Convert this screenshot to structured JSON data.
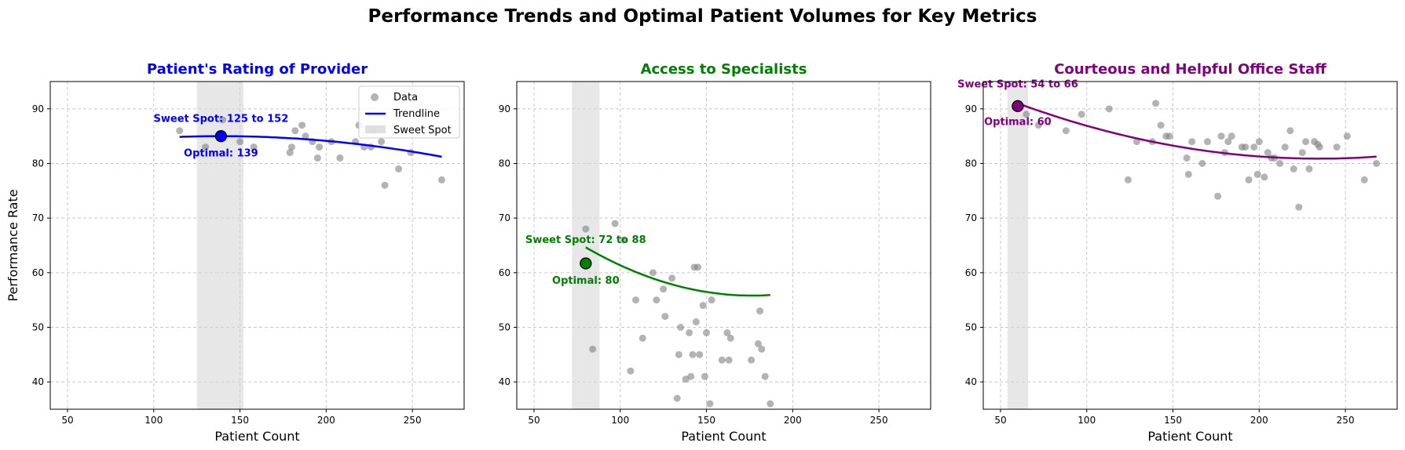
{
  "figure": {
    "title": "Performance Trends and Optimal Patient Volumes for Key Metrics"
  },
  "chart_data": [
    {
      "type": "scatter",
      "title": "Patient's Rating of Provider",
      "title_color": "#0000ff",
      "accent_color": "#0000ff",
      "xlabel": "Patient Count",
      "ylabel": "Performance Rate",
      "xlim": [
        40,
        280
      ],
      "ylim": [
        35,
        95
      ],
      "xticks": [
        50,
        100,
        150,
        200,
        250
      ],
      "yticks": [
        40,
        50,
        60,
        70,
        80,
        90
      ],
      "grid": true,
      "legend": {
        "position": "top-right",
        "entries": [
          "Data",
          "Trendline",
          "Sweet Spot"
        ]
      },
      "points": [
        {
          "x": 115,
          "y": 86
        },
        {
          "x": 130,
          "y": 83
        },
        {
          "x": 140,
          "y": 88
        },
        {
          "x": 150,
          "y": 84
        },
        {
          "x": 158,
          "y": 83
        },
        {
          "x": 179,
          "y": 82
        },
        {
          "x": 180,
          "y": 83
        },
        {
          "x": 182,
          "y": 86
        },
        {
          "x": 186,
          "y": 87
        },
        {
          "x": 188,
          "y": 85
        },
        {
          "x": 192,
          "y": 84
        },
        {
          "x": 195,
          "y": 81
        },
        {
          "x": 196,
          "y": 83
        },
        {
          "x": 203,
          "y": 84
        },
        {
          "x": 208,
          "y": 81
        },
        {
          "x": 217,
          "y": 84
        },
        {
          "x": 219,
          "y": 87
        },
        {
          "x": 222,
          "y": 83
        },
        {
          "x": 226,
          "y": 83
        },
        {
          "x": 227,
          "y": 86
        },
        {
          "x": 232,
          "y": 84
        },
        {
          "x": 234,
          "y": 76
        },
        {
          "x": 242,
          "y": 79
        },
        {
          "x": 249,
          "y": 82
        },
        {
          "x": 267,
          "y": 77
        }
      ],
      "trend": {
        "x_range": [
          115,
          267
        ],
        "quadratic": [
          -0.00023,
          0.0639,
          80.56
        ]
      },
      "sweet_spot": {
        "range": [
          125,
          152
        ],
        "label": "Sweet Spot: 125 to 152"
      },
      "optimal": {
        "x": 139,
        "y": 85,
        "label": "Optimal: 139"
      }
    },
    {
      "type": "scatter",
      "title": "Access to Specialists",
      "title_color": "#008000",
      "accent_color": "#008000",
      "xlabel": "Patient Count",
      "ylabel": "",
      "xlim": [
        40,
        280
      ],
      "ylim": [
        35,
        95
      ],
      "xticks": [
        50,
        100,
        150,
        200,
        250
      ],
      "yticks": [
        40,
        50,
        60,
        70,
        80,
        90
      ],
      "grid": true,
      "points": [
        {
          "x": 80,
          "y": 68
        },
        {
          "x": 84,
          "y": 46
        },
        {
          "x": 97,
          "y": 69
        },
        {
          "x": 102,
          "y": 66
        },
        {
          "x": 106,
          "y": 42
        },
        {
          "x": 109,
          "y": 55
        },
        {
          "x": 113,
          "y": 48
        },
        {
          "x": 119,
          "y": 60
        },
        {
          "x": 121,
          "y": 55
        },
        {
          "x": 125,
          "y": 57
        },
        {
          "x": 126,
          "y": 52
        },
        {
          "x": 130,
          "y": 59
        },
        {
          "x": 133,
          "y": 37
        },
        {
          "x": 134,
          "y": 45
        },
        {
          "x": 135,
          "y": 50
        },
        {
          "x": 138,
          "y": 40.5
        },
        {
          "x": 140,
          "y": 49
        },
        {
          "x": 141,
          "y": 41
        },
        {
          "x": 142,
          "y": 45
        },
        {
          "x": 143,
          "y": 61
        },
        {
          "x": 144,
          "y": 51
        },
        {
          "x": 145,
          "y": 61
        },
        {
          "x": 146,
          "y": 45
        },
        {
          "x": 148,
          "y": 54
        },
        {
          "x": 149,
          "y": 41
        },
        {
          "x": 150,
          "y": 49
        },
        {
          "x": 152,
          "y": 36
        },
        {
          "x": 153,
          "y": 55
        },
        {
          "x": 159,
          "y": 44
        },
        {
          "x": 162,
          "y": 49
        },
        {
          "x": 163,
          "y": 44
        },
        {
          "x": 164,
          "y": 48
        },
        {
          "x": 176,
          "y": 44
        },
        {
          "x": 180,
          "y": 47
        },
        {
          "x": 181,
          "y": 53
        },
        {
          "x": 182,
          "y": 46
        },
        {
          "x": 184,
          "y": 41
        },
        {
          "x": 187,
          "y": 36
        }
      ],
      "trend": {
        "x_range": [
          80,
          187
        ],
        "quadratic": [
          0.000948,
          -0.3347,
          85.35
        ]
      },
      "sweet_spot": {
        "range": [
          72,
          88
        ],
        "label": "Sweet Spot: 72 to 88"
      },
      "optimal": {
        "x": 80,
        "y": 61.7,
        "label": "Optimal: 80"
      }
    },
    {
      "type": "scatter",
      "title": "Courteous and Helpful Office Staff",
      "title_color": "#800080",
      "accent_color": "#800080",
      "xlabel": "Patient Count",
      "ylabel": "",
      "xlim": [
        40,
        280
      ],
      "ylim": [
        35,
        95
      ],
      "xticks": [
        50,
        100,
        150,
        200,
        250
      ],
      "yticks": [
        40,
        50,
        60,
        70,
        80,
        90
      ],
      "grid": true,
      "points": [
        {
          "x": 60,
          "y": 91
        },
        {
          "x": 65,
          "y": 89
        },
        {
          "x": 72,
          "y": 87
        },
        {
          "x": 88,
          "y": 86
        },
        {
          "x": 97,
          "y": 89
        },
        {
          "x": 113,
          "y": 90
        },
        {
          "x": 124,
          "y": 77
        },
        {
          "x": 129,
          "y": 84
        },
        {
          "x": 138,
          "y": 84
        },
        {
          "x": 140,
          "y": 91
        },
        {
          "x": 143,
          "y": 87
        },
        {
          "x": 146,
          "y": 85
        },
        {
          "x": 148,
          "y": 85
        },
        {
          "x": 158,
          "y": 81
        },
        {
          "x": 159,
          "y": 78
        },
        {
          "x": 161,
          "y": 84
        },
        {
          "x": 167,
          "y": 80
        },
        {
          "x": 170,
          "y": 84
        },
        {
          "x": 176,
          "y": 74
        },
        {
          "x": 178,
          "y": 85
        },
        {
          "x": 180,
          "y": 82
        },
        {
          "x": 182,
          "y": 84
        },
        {
          "x": 184,
          "y": 85
        },
        {
          "x": 190,
          "y": 83
        },
        {
          "x": 192,
          "y": 83
        },
        {
          "x": 194,
          "y": 77
        },
        {
          "x": 197,
          "y": 83
        },
        {
          "x": 199,
          "y": 78
        },
        {
          "x": 200,
          "y": 84
        },
        {
          "x": 203,
          "y": 77.5
        },
        {
          "x": 205,
          "y": 82
        },
        {
          "x": 207,
          "y": 81
        },
        {
          "x": 209,
          "y": 81
        },
        {
          "x": 212,
          "y": 80
        },
        {
          "x": 215,
          "y": 83
        },
        {
          "x": 218,
          "y": 86
        },
        {
          "x": 220,
          "y": 79
        },
        {
          "x": 223,
          "y": 72
        },
        {
          "x": 225,
          "y": 82
        },
        {
          "x": 227,
          "y": 84
        },
        {
          "x": 229,
          "y": 79
        },
        {
          "x": 232,
          "y": 84
        },
        {
          "x": 234,
          "y": 83.5
        },
        {
          "x": 235,
          "y": 83
        },
        {
          "x": 245,
          "y": 83
        },
        {
          "x": 251,
          "y": 85
        },
        {
          "x": 261,
          "y": 77
        },
        {
          "x": 268,
          "y": 80
        }
      ],
      "trend": {
        "x_range": [
          60,
          268
        ],
        "quadratic": [
          0.0003315,
          -0.15564,
          99.15
        ]
      },
      "sweet_spot": {
        "range": [
          54,
          66
        ],
        "label": "Sweet Spot: 54 to 66"
      },
      "optimal": {
        "x": 60,
        "y": 90.5,
        "label": "Optimal: 60"
      }
    }
  ]
}
